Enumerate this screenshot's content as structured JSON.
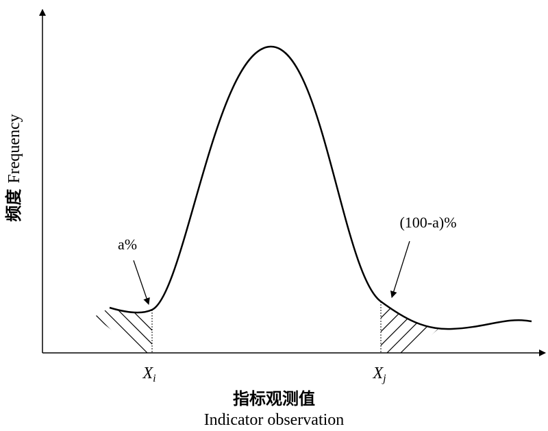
{
  "y_axis": {
    "label_zh": "频度",
    "label_en": "Frequency"
  },
  "x_axis": {
    "label_zh": "指标观测值",
    "label_en": "Indicator observation"
  },
  "markers": [
    {
      "base": "X",
      "sub": "i"
    },
    {
      "base": "X",
      "sub": "j"
    }
  ],
  "annotations": [
    "a%",
    "(100-a)%"
  ]
}
